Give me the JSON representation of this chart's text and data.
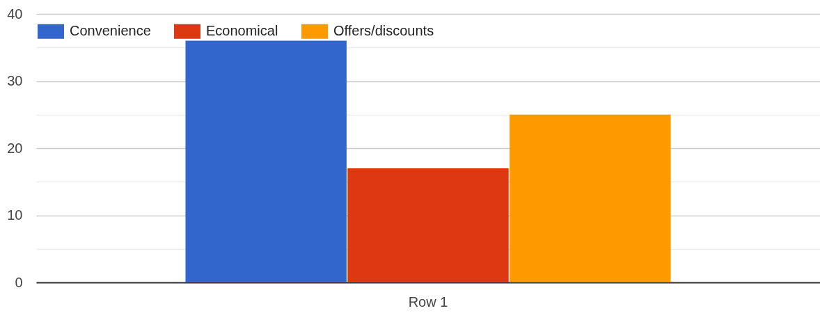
{
  "chart_data": {
    "type": "bar",
    "categories": [
      "Row 1"
    ],
    "series": [
      {
        "name": "Convenience",
        "color": "#3366cc",
        "values": [
          36
        ]
      },
      {
        "name": "Economical",
        "color": "#dc3912",
        "values": [
          17
        ]
      },
      {
        "name": "Offers/discounts",
        "color": "#ff9900",
        "values": [
          25
        ]
      }
    ],
    "ylim": [
      0,
      40
    ],
    "yticks": [
      0,
      {
        "value": 5,
        "label": null
      },
      10,
      {
        "value": 15,
        "label": null
      },
      20,
      {
        "value": 25,
        "label": null
      },
      30,
      {
        "value": 35,
        "label": null
      },
      40
    ],
    "grid": "y",
    "legend": "top left"
  }
}
